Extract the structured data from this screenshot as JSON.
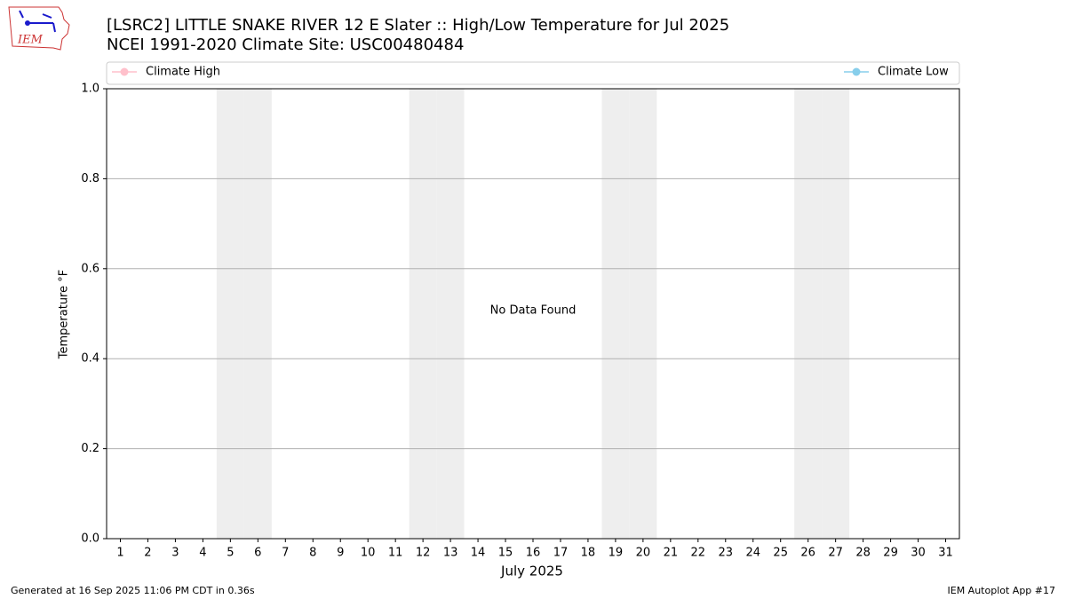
{
  "chart_data": {
    "type": "line",
    "title": "[LSRC2] LITTLE SNAKE RIVER 12 E Slater :: High/Low Temperature for Jul 2025",
    "subtitle": "NCEI 1991-2020 Climate Site: USC00480484",
    "x_label": "July 2025",
    "y_label": "Temperature °F",
    "annotation": "No Data Found",
    "categories": [
      "1",
      "2",
      "3",
      "4",
      "5",
      "6",
      "7",
      "8",
      "9",
      "10",
      "11",
      "12",
      "13",
      "14",
      "15",
      "16",
      "17",
      "18",
      "19",
      "20",
      "21",
      "22",
      "23",
      "24",
      "25",
      "26",
      "27",
      "28",
      "29",
      "30",
      "31"
    ],
    "shaded_categories": [
      "5",
      "6",
      "12",
      "13",
      "19",
      "20",
      "26",
      "27"
    ],
    "series": [
      {
        "name": "Climate High",
        "color": "#ffc0cb",
        "values": [
          null,
          null,
          null,
          null,
          null,
          null,
          null,
          null,
          null,
          null,
          null,
          null,
          null,
          null,
          null,
          null,
          null,
          null,
          null,
          null,
          null,
          null,
          null,
          null,
          null,
          null,
          null,
          null,
          null,
          null,
          null
        ]
      },
      {
        "name": "Climate Low",
        "color": "#87ceeb",
        "values": [
          null,
          null,
          null,
          null,
          null,
          null,
          null,
          null,
          null,
          null,
          null,
          null,
          null,
          null,
          null,
          null,
          null,
          null,
          null,
          null,
          null,
          null,
          null,
          null,
          null,
          null,
          null,
          null,
          null,
          null,
          null
        ]
      }
    ],
    "ylim": [
      0,
      1
    ],
    "yticks": [
      {
        "value": 0,
        "label": "0.0"
      },
      0.2,
      0.4,
      0.6,
      0.8,
      {
        "value": 1,
        "label": "1.0"
      }
    ],
    "grid": true
  },
  "logo": "IEM",
  "footer_left": "Generated at 16 Sep 2025 11:06 PM CDT in 0.36s",
  "footer_right": "IEM Autoplot App #17"
}
